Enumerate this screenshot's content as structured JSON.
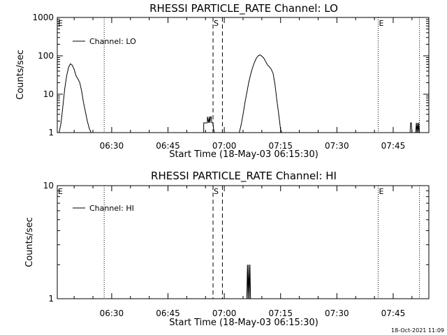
{
  "chart_data": [
    {
      "type": "line",
      "title": "RHESSI PARTICLE_RATE Channel: LO",
      "xlabel": "Start Time (18-May-03 06:15:30)",
      "ylabel": "Counts/sec",
      "y_scale": "log",
      "ylim": [
        1,
        1000
      ],
      "xlim": [
        "06:15:30",
        "07:54:30"
      ],
      "y_ticks": [
        "1",
        "10",
        "100",
        "1000"
      ],
      "x_ticks": [
        "06:30",
        "06:45",
        "07:00",
        "07:15",
        "07:30",
        "07:45"
      ],
      "grid": false,
      "legend": "top-left",
      "legend_label": "Channel: LO",
      "markers": [
        {
          "time": "06:15:30",
          "label": "E",
          "style": "dotted"
        },
        {
          "time": "06:28:00",
          "label": "",
          "style": "dotted"
        },
        {
          "time": "06:57:00",
          "label": "S",
          "style": "dashed"
        },
        {
          "time": "06:59:30",
          "label": "",
          "style": "dashed"
        },
        {
          "time": "07:41:00",
          "label": "E",
          "style": "dotted"
        },
        {
          "time": "07:52:00",
          "label": "",
          "style": "dotted"
        }
      ],
      "series": [
        {
          "x": [
            "06:16:00",
            "06:16:30",
            "06:17:00",
            "06:17:30",
            "06:18:00",
            "06:18:30",
            "06:19:00",
            "06:19:30",
            "06:20:00",
            "06:20:30",
            "06:21:00",
            "06:21:30",
            "06:22:00",
            "06:22:30",
            "06:23:00",
            "06:23:30",
            "06:24:00",
            "06:24:30",
            "06:25:00",
            "06:25:30",
            "06:25:40",
            "06:54:30",
            "06:54:31",
            "06:55:30",
            "06:55:31",
            "06:55:50",
            "06:56:00",
            "06:56:10",
            "06:56:20",
            "06:56:30",
            "06:56:40",
            "06:56:50",
            "06:57:00",
            "06:57:10",
            "06:57:20",
            "06:57:21",
            "07:04:00",
            "07:04:30",
            "07:05:00",
            "07:05:30",
            "07:06:00",
            "07:06:30",
            "07:07:00",
            "07:07:30",
            "07:08:00",
            "07:08:30",
            "07:09:00",
            "07:09:30",
            "07:10:00",
            "07:10:30",
            "07:11:00",
            "07:11:30",
            "07:12:00",
            "07:12:30",
            "07:13:00",
            "07:13:30",
            "07:14:00",
            "07:14:30",
            "07:15:00",
            "07:15:20",
            "07:49:30",
            "07:49:40",
            "07:49:50",
            "07:50:00",
            "07:51:00",
            "07:51:10",
            "07:51:20",
            "07:51:30",
            "07:51:40",
            "07:51:50",
            "07:52:00"
          ],
          "y": [
            1,
            1.8,
            5,
            14,
            30,
            50,
            62,
            57,
            44,
            30,
            25,
            20,
            12,
            6,
            3.5,
            2,
            1.3,
            1,
            1,
            1,
            1,
            1,
            1.8,
            1.8,
            2.6,
            1.8,
            2.6,
            1.8,
            2.6,
            2.6,
            1.8,
            1.8,
            1.8,
            1.2,
            1,
            1,
            1,
            1.6,
            3,
            6,
            11,
            20,
            32,
            48,
            66,
            85,
            100,
            106,
            98,
            88,
            72,
            58,
            52,
            45,
            35,
            18,
            7,
            3,
            1.2,
            1,
            1,
            1.8,
            1.8,
            1,
            1,
            1.8,
            1,
            1.8,
            1,
            1.8,
            1
          ]
        }
      ]
    },
    {
      "type": "line",
      "title": "RHESSI PARTICLE_RATE Channel: HI",
      "xlabel": "Start Time (18-May-03 06:15:30)",
      "ylabel": "Counts/sec",
      "y_scale": "log",
      "ylim": [
        1,
        10
      ],
      "xlim": [
        "06:15:30",
        "07:54:30"
      ],
      "y_ticks": [
        "1",
        "10"
      ],
      "x_ticks": [
        "06:30",
        "06:45",
        "07:00",
        "07:15",
        "07:30",
        "07:45"
      ],
      "grid": false,
      "legend": "top-left",
      "legend_label": "Channel: HI",
      "markers": [
        {
          "time": "06:15:30",
          "label": "E",
          "style": "dotted"
        },
        {
          "time": "06:28:00",
          "label": "",
          "style": "dotted"
        },
        {
          "time": "06:57:00",
          "label": "S",
          "style": "dashed"
        },
        {
          "time": "06:59:30",
          "label": "",
          "style": "dashed"
        },
        {
          "time": "07:41:00",
          "label": "E",
          "style": "dotted"
        },
        {
          "time": "07:52:00",
          "label": "",
          "style": "dotted"
        }
      ],
      "series": [
        {
          "x": [
            "07:06:00",
            "07:06:10",
            "07:06:20",
            "07:06:30",
            "07:06:40",
            "07:06:50",
            "07:07:00",
            "07:07:10",
            "07:07:20"
          ],
          "y": [
            1,
            2,
            1,
            2,
            1,
            2,
            1,
            1,
            1
          ]
        }
      ]
    }
  ],
  "footer": {
    "timestamp": "18-Oct-2021 11:09"
  },
  "colors": {
    "background": "#ffffff",
    "foreground": "#000000"
  }
}
